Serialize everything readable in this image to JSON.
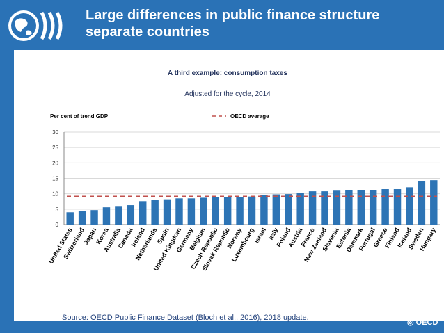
{
  "slide": {
    "title_line1": "Large differences in public finance structure",
    "title_line2": "separate countries",
    "source": "Source: OECD Public Finance Dataset (Bloch et al., 2016), 2018 update.",
    "footer_logo_text": "OECD"
  },
  "colors": {
    "header": "#2a72b6",
    "bar": "#2d74b5",
    "avg": "#c0504d"
  },
  "chart_data": {
    "type": "bar",
    "title": "A third example: consumption taxes",
    "subtitle": "Adjusted for the cycle, 2014",
    "ylabel": "Per cent of trend GDP",
    "ylim": [
      0,
      30
    ],
    "yticks": [
      0,
      5,
      10,
      15,
      20,
      25,
      30
    ],
    "legend": {
      "label": "OECD average",
      "placement": "top-center"
    },
    "average": 9.2,
    "categories": [
      "United States",
      "Switzerland",
      "Japan",
      "Korea",
      "Australia",
      "Canada",
      "Ireland",
      "Netherlands",
      "Spain",
      "United Kingdom",
      "Germany",
      "Belgium",
      "Czech Republic",
      "Slovak Republic",
      "Norway",
      "Luxembourg",
      "Israel",
      "Italy",
      "Poland",
      "Austria",
      "France",
      "New Zealand",
      "Slovenia",
      "Estonia",
      "Denmark",
      "Portugal",
      "Greece",
      "Finland",
      "Iceland",
      "Sweden",
      "Hungary"
    ],
    "values": [
      4.0,
      4.5,
      4.7,
      5.6,
      5.8,
      6.3,
      7.6,
      7.9,
      8.2,
      8.5,
      8.5,
      8.7,
      8.8,
      8.9,
      9.0,
      9.1,
      9.5,
      9.8,
      9.9,
      10.3,
      10.8,
      10.8,
      11.0,
      11.1,
      11.2,
      11.2,
      11.5,
      11.5,
      12.1,
      14.2,
      14.4
    ]
  }
}
